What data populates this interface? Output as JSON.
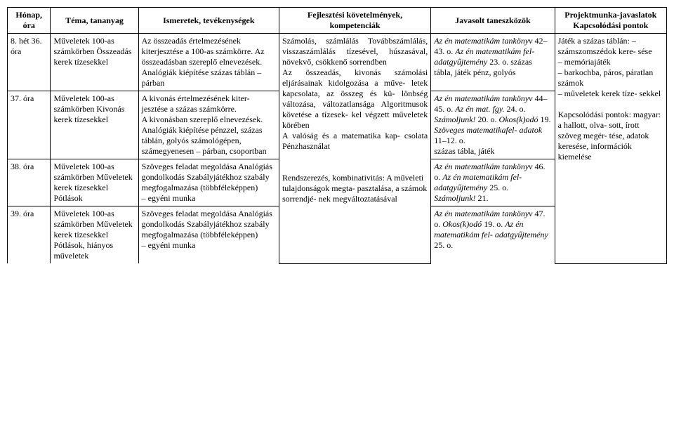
{
  "headers": {
    "hour": "Hónap, óra",
    "topic": "Téma, tananyag",
    "activities": "Ismeretek, tevékenységek",
    "requirements": "Fejlesztési követelmények, kompetenciák",
    "tools": "Javasolt taneszközök",
    "project": "Projektmunka-javaslatok Kapcsolódási pontok"
  },
  "rows": [
    {
      "hour": "8. hét 36. óra",
      "topic": "Műveletek 100-as számkörben Összeadás kerek tízesekkel",
      "activities": "Az összeadás értelmezésének kiterjesztése a 100-as számkörre. Az összeadásban szereplő elnevezések. Analógiák kiépítése százas táblán – párban",
      "tools_i": "Az én matematikám tankönyv",
      "tools_p": " 42–43. o. ",
      "tools_i2": "Az én matematikám fel- adatgyűjtemény",
      "tools_p2": " 23. o. százas tábla, játék pénz, golyós"
    },
    {
      "hour": "37. óra",
      "topic": "Műveletek 100-as számkörben Kivonás kerek tízesekkel",
      "activities": "A kivonás értelmezésének kiter- jesztése a százas számkörre.\nA kivonásban szereplő elnevezések.\nAnalógiák kiépítése pénzzel, százas táblán, golyós számológépen, számegyenesen – párban, csoportban",
      "tools_i": "Az én matematikám tankönyv",
      "tools_p": " 44–45. o. ",
      "tools_i2": "Az én mat. fgy.",
      "tools_p2": " 24. o. ",
      "tools_i3": "Számoljunk!",
      "tools_p3": " 20. o. ",
      "tools_i4": "Okos(k)odó",
      "tools_p4": " 19. ",
      "tools_i5": "Szöveges matematikafel- adatok",
      "tools_p5": " 11–12. o.\nszázas tábla, játék"
    },
    {
      "hour": "38. óra",
      "topic": "Műveletek 100-as számkörben Műveletek kerek tízesekkel Pótlások",
      "activities": "Szöveges feladat megoldása Analógiás gondolkodás Szabályjátékhoz szabály megfogalmazása (többféleképpen)\n– egyéni munka",
      "tools_i": "Az én matematikám tankönyv",
      "tools_p": " 46. o. ",
      "tools_i2": "Az én matematikám fel- adatgyűjtemény",
      "tools_p2": " 25. o. ",
      "tools_i3": "Számoljunk!",
      "tools_p3": " 21."
    },
    {
      "hour": "39. óra",
      "topic": "Műveletek 100-as számkörben Műveletek kerek tízesekkel Pótlások, hiányos műveletek",
      "activities": "Szöveges feladat megoldása Analógiás gondolkodás Szabályjátékhoz szabály megfogalmazása (többféleképpen)\n– egyéni munka",
      "tools_i": "Az én matematikám tankönyv",
      "tools_p": " 47. o. ",
      "tools_i2": "Okos(k)odó",
      "tools_p2": " 19. o. ",
      "tools_i3": "Az én matematikám fel- adatgyűjtemény",
      "tools_p3": " 25. o."
    }
  ],
  "req": {
    "p1": "Számolás, számlálás Továbbszámlálás, visszaszámlálás tízesével, húszasával, növekvő, csökkenő sorrendben\nAz összeadás, kivonás számolási eljárásainak kidolgozása a műve- letek kapcsolata, az összeg és kü- lönbség változása, változatlansága Algoritmusok követése a tízesek- kel végzett műveletek körében\nA valóság és a matematika kap- csolata Pénzhasználat",
    "p2": "Rendszerezés, kombinativitás: A műveleti tulajdonságok megta- pasztalása, a számok sorrendjé- nek megváltoztatásával"
  },
  "proj": {
    "p1": "Játék a százas táblán: – számszomszédok kere- sése\n– memóriajáték\n– barkochba, páros, páratlan számok\n– műveletek kerek tíze- sekkel",
    "p2": "Kapcsolódási pontok: magyar: a hallott, olva- sott, írott szöveg megér- tése, adatok keresése, információk kiemelése"
  }
}
